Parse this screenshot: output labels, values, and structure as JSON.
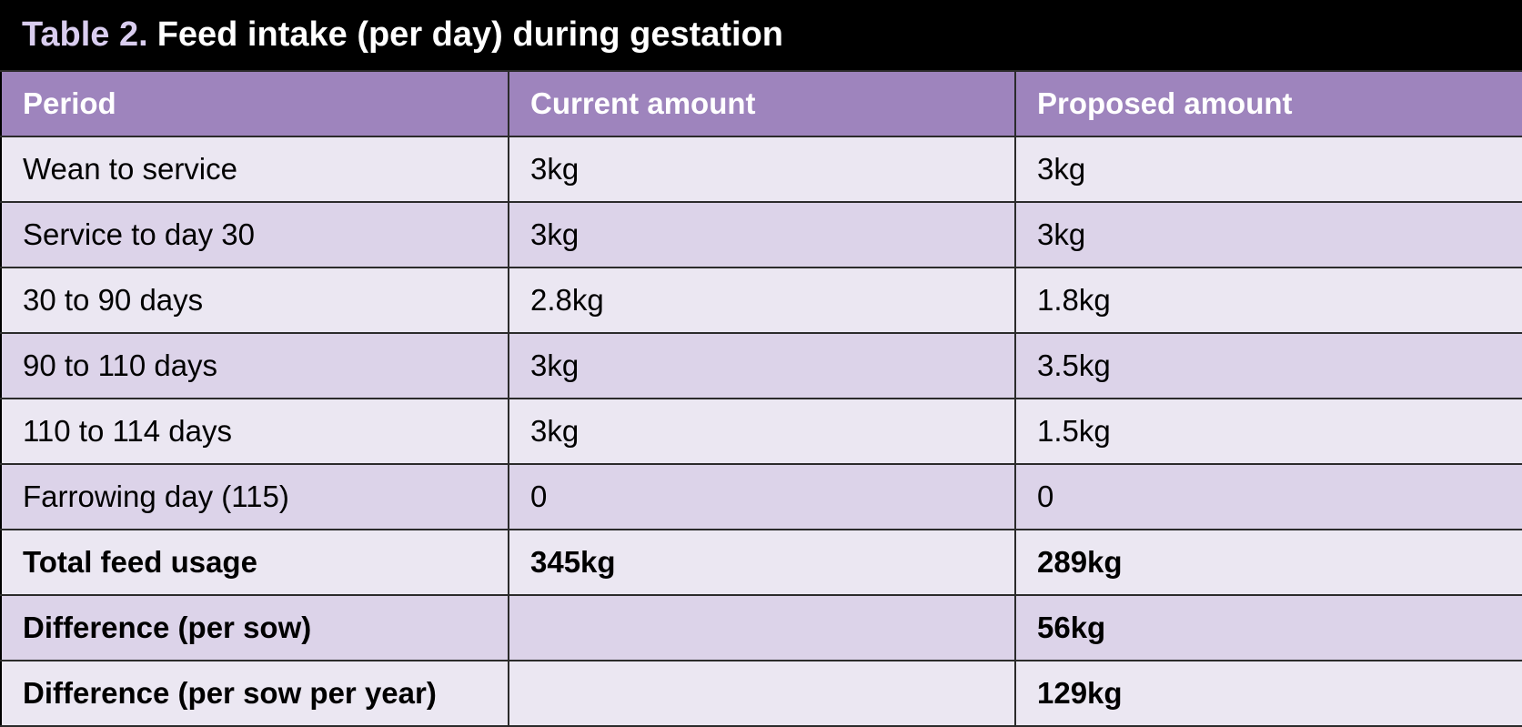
{
  "title": {
    "label": "Table 2.",
    "text": "Feed intake (per day) during gestation"
  },
  "table": {
    "header": [
      "Period",
      "Current amount",
      "Proposed amount"
    ],
    "rows": [
      [
        "Wean to service",
        "3kg",
        "3kg"
      ],
      [
        "Service to day 30",
        "3kg",
        "3kg"
      ],
      [
        "30 to 90 days",
        "2.8kg",
        "1.8kg"
      ],
      [
        "90 to 110 days",
        "3kg",
        "3.5kg"
      ],
      [
        "110 to 114 days",
        "3kg",
        "1.5kg"
      ],
      [
        "Farrowing day (115)",
        "0",
        "0"
      ],
      [
        "Total feed usage",
        "345kg",
        "289kg"
      ],
      [
        "Difference (per sow)",
        null,
        "56kg"
      ],
      [
        "Difference (per sow per year)",
        null,
        "129kg"
      ]
    ]
  }
}
